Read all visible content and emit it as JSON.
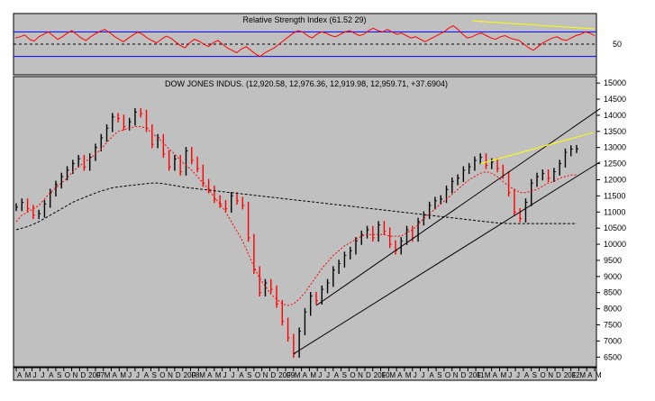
{
  "colors": {
    "panel_bg": "#c0c0c0",
    "frame": "#000000",
    "rsi_line": "#ff0000",
    "rsi_band": "#0000ff",
    "price_up": "#000000",
    "price_down": "#ff0000",
    "ma_short": "#ff0000",
    "ma_long": "#000000",
    "trend_channel": "#000000",
    "resistance": "#ffff00"
  },
  "chart_data": [
    {
      "type": "line",
      "title": "Relative Strength Index (61.52 29)",
      "ylim": [
        0,
        100
      ],
      "yticks": [
        "50"
      ],
      "reference_lines": [
        {
          "value": 70,
          "style": "solid"
        },
        {
          "value": 50,
          "style": "dashed"
        },
        {
          "value": 30,
          "style": "solid"
        }
      ],
      "series": [
        {
          "values": [
            60,
            62,
            65,
            58,
            55,
            62,
            66,
            70,
            64,
            58,
            62,
            68,
            72,
            66,
            60,
            56,
            62,
            67,
            71,
            74,
            69,
            63,
            58,
            54,
            60,
            65,
            70,
            66,
            60,
            56,
            52,
            58,
            63,
            60,
            54,
            48,
            44,
            52,
            58,
            55,
            50,
            46,
            52,
            56,
            50,
            44,
            40,
            36,
            42,
            46,
            40,
            34,
            30,
            36,
            40,
            44,
            50,
            56,
            62,
            68,
            72,
            70,
            64,
            60,
            66,
            70,
            68,
            64,
            62,
            66,
            70,
            72,
            68,
            64,
            66,
            72,
            76,
            72,
            70,
            74,
            70,
            66,
            68,
            64,
            60,
            62,
            58,
            54,
            58,
            62,
            66,
            70,
            76,
            80,
            74,
            66,
            60,
            62,
            66,
            68,
            64,
            60,
            58,
            62,
            64,
            60,
            58,
            56,
            50,
            44,
            40,
            46,
            52,
            56,
            60,
            62,
            58,
            56,
            60,
            64,
            66,
            70,
            68,
            64
          ]
        }
      ],
      "annotations": [
        {
          "type": "resistance",
          "from": [
            97,
            88
          ],
          "to": [
            123,
            75
          ]
        }
      ]
    },
    {
      "type": "bar",
      "title": "DOW JONES INDUS. (12,920.58, 12,976.36, 12,919.98, 12,959.71, +37.6904)",
      "ylim": [
        6200,
        15200
      ],
      "yticks": [
        "6500",
        "7000",
        "7500",
        "8000",
        "8500",
        "9000",
        "9500",
        "10000",
        "10500",
        "11000",
        "11500",
        "12000",
        "12500",
        "13000",
        "13500",
        "14000",
        "14500",
        "15000"
      ],
      "x_ticks": [
        "A",
        "M",
        "J",
        "J",
        "A",
        "S",
        "O",
        "N",
        "D",
        "2007",
        "F",
        "M",
        "A",
        "M",
        "J",
        "J",
        "A",
        "S",
        "O",
        "N",
        "D",
        "2008",
        "F",
        "M",
        "A",
        "M",
        "J",
        "J",
        "A",
        "S",
        "O",
        "N",
        "D",
        "2009",
        "F",
        "M",
        "A",
        "M",
        "J",
        "J",
        "A",
        "S",
        "O",
        "N",
        "D",
        "2010",
        "F",
        "M",
        "A",
        "M",
        "J",
        "J",
        "A",
        "S",
        "O",
        "N",
        "D",
        "2011",
        "F",
        "M",
        "A",
        "M",
        "J",
        "J",
        "A",
        "S",
        "O",
        "N",
        "D",
        "2012",
        "F",
        "M",
        "A",
        "M"
      ],
      "series": [
        {
          "name": "close",
          "values": [
            11150,
            11300,
            11100,
            10900,
            10950,
            11250,
            11600,
            11850,
            12100,
            12300,
            12500,
            12650,
            12400,
            12700,
            13000,
            13300,
            13600,
            13950,
            13900,
            13650,
            13800,
            14100,
            14050,
            13600,
            13100,
            13300,
            12800,
            12400,
            12650,
            12250,
            12900,
            12600,
            12350,
            11900,
            11700,
            11400,
            11250,
            11100,
            11500,
            11350,
            11200,
            10200,
            9200,
            8500,
            8800,
            8600,
            8150,
            7600,
            7100,
            6600,
            7300,
            7900,
            8400,
            8250,
            8600,
            8800,
            9200,
            9400,
            9650,
            9800,
            10100,
            10300,
            10450,
            10200,
            10600,
            10400,
            10000,
            9800,
            10100,
            10450,
            10200,
            10700,
            10900,
            11200,
            11350,
            11400,
            11700,
            11950,
            12050,
            12300,
            12400,
            12600,
            12700,
            12450,
            12550,
            12350,
            12150,
            11600,
            11000,
            10800,
            11300,
            11900,
            12100,
            12200,
            12050,
            12250,
            12500,
            12850,
            12950,
            12960
          ]
        },
        {
          "name": "short moving average",
          "values": [
            10700,
            10900,
            11000,
            11100,
            11200,
            11400,
            11600,
            11750,
            11900,
            12050,
            12250,
            12400,
            12550,
            12650,
            12800,
            12950,
            13150,
            13350,
            13500,
            13550,
            13600,
            13650,
            13650,
            13600,
            13450,
            13300,
            13150,
            12950,
            12800,
            12600,
            12450,
            12300,
            12100,
            11900,
            11700,
            11450,
            11250,
            11000,
            10700,
            10400,
            10100,
            9700,
            9300,
            8950,
            8700,
            8450,
            8300,
            8150,
            8100,
            8150,
            8300,
            8500,
            8750,
            9000,
            9250,
            9450,
            9650,
            9800,
            9950,
            10050,
            10150,
            10250,
            10300,
            10300,
            10300,
            10300,
            10250,
            10250,
            10250,
            10350,
            10450,
            10600,
            10800,
            10950,
            11100,
            11250,
            11400,
            11550,
            11700,
            11850,
            12000,
            12100,
            12200,
            12250,
            12200,
            12100,
            11950,
            11800,
            11700,
            11600,
            11600,
            11650,
            11700,
            11800,
            11900,
            11950,
            12050,
            12100,
            12150,
            12150
          ]
        },
        {
          "name": "long moving average",
          "values": [
            10450,
            10500,
            10550,
            10620,
            10700,
            10800,
            10900,
            11000,
            11100,
            11200,
            11300,
            11380,
            11450,
            11520,
            11590,
            11650,
            11700,
            11750,
            11780,
            11800,
            11820,
            11840,
            11860,
            11880,
            11900,
            11900,
            11880,
            11850,
            11820,
            11790,
            11760,
            11740,
            11720,
            11700,
            11680,
            11660,
            11640,
            11620,
            11600,
            11580,
            11560,
            11540,
            11520,
            11500,
            11480,
            11460,
            11440,
            11420,
            11400,
            11380,
            11360,
            11340,
            11320,
            11300,
            11280,
            11260,
            11240,
            11220,
            11200,
            11180,
            11160,
            11140,
            11120,
            11100,
            11080,
            11060,
            11040,
            11020,
            11000,
            10980,
            10960,
            10940,
            10920,
            10900,
            10880,
            10860,
            10840,
            10820,
            10800,
            10780,
            10760,
            10740,
            10720,
            10700,
            10680,
            10660,
            10650,
            10640,
            10640,
            10640,
            10640,
            10640,
            10640,
            10640,
            10640,
            10640,
            10640,
            10640,
            10640,
            10640
          ]
        }
      ],
      "annotations": [
        {
          "type": "channel-support",
          "from": [
            49,
            6600
          ],
          "to": [
            100,
            12000
          ]
        },
        {
          "type": "channel-upper",
          "from": [
            53,
            8100
          ],
          "to": [
            100,
            13650
          ]
        },
        {
          "type": "resistance",
          "from": [
            82,
            12500
          ],
          "to": [
            100,
            13350
          ]
        }
      ]
    }
  ]
}
